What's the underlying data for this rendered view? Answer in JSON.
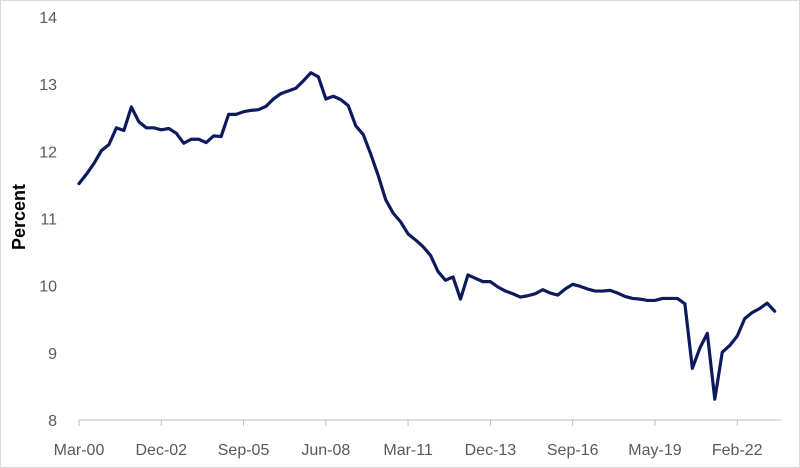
{
  "chart_data": {
    "type": "line",
    "title": "",
    "xlabel": "",
    "ylabel": "Percent",
    "ylim": [
      8,
      14
    ],
    "y_ticks": [
      "8",
      "9",
      "10",
      "11",
      "12",
      "13",
      "14"
    ],
    "x_tick_labels": [
      "Mar-00",
      "Dec-02",
      "Sep-05",
      "Jun-08",
      "Mar-11",
      "Dec-13",
      "Sep-16",
      "May-19",
      "Feb-22"
    ],
    "x_unit": "quarter",
    "x_range": [
      "Mar-00",
      "Jun-23"
    ],
    "grid": false,
    "legend": "none",
    "line_color": "#0d1b5c",
    "series": [
      {
        "x": [
          "Mar-00",
          "Jun-00",
          "Sep-00",
          "Dec-00",
          "Mar-01",
          "Jun-01",
          "Sep-01",
          "Dec-01",
          "Mar-02",
          "Jun-02",
          "Sep-02",
          "Dec-02",
          "Mar-03",
          "Jun-03",
          "Sep-03",
          "Dec-03",
          "Mar-04",
          "Jun-04",
          "Sep-04",
          "Dec-04",
          "Mar-05",
          "Jun-05",
          "Sep-05",
          "Dec-05",
          "Mar-06",
          "Jun-06",
          "Sep-06",
          "Dec-06",
          "Mar-07",
          "Jun-07",
          "Sep-07",
          "Dec-07",
          "Mar-08",
          "Jun-08",
          "Sep-08",
          "Dec-08",
          "Mar-09",
          "Jun-09",
          "Sep-09",
          "Dec-09",
          "Mar-10",
          "Jun-10",
          "Sep-10",
          "Dec-10",
          "Mar-11",
          "Jun-11",
          "Sep-11",
          "Dec-11",
          "Mar-12",
          "Jun-12",
          "Sep-12",
          "Dec-12",
          "Mar-13",
          "Jun-13",
          "Sep-13",
          "Dec-13",
          "Mar-14",
          "Jun-14",
          "Sep-14",
          "Dec-14",
          "Mar-15",
          "Jun-15",
          "Sep-15",
          "Dec-15",
          "Mar-16",
          "Jun-16",
          "Sep-16",
          "Dec-16",
          "Mar-17",
          "Jun-17",
          "Sep-17",
          "Dec-17",
          "Mar-18",
          "Jun-18",
          "Sep-18",
          "Dec-18",
          "Mar-19",
          "Jun-19",
          "Sep-19",
          "Dec-19",
          "Mar-20",
          "Jun-20",
          "Sep-20",
          "Dec-20",
          "Mar-21",
          "Jun-21",
          "Sep-21",
          "Dec-21",
          "Mar-22",
          "Jun-22",
          "Sep-22",
          "Dec-22",
          "Mar-23",
          "Jun-23"
        ],
        "values": [
          11.52,
          11.66,
          11.82,
          12.01,
          12.1,
          12.35,
          12.31,
          12.66,
          12.44,
          12.35,
          12.35,
          12.32,
          12.34,
          12.27,
          12.12,
          12.18,
          12.18,
          12.13,
          12.23,
          12.22,
          12.55,
          12.55,
          12.59,
          12.61,
          12.62,
          12.67,
          12.78,
          12.86,
          12.9,
          12.94,
          13.05,
          13.17,
          13.11,
          12.78,
          12.82,
          12.77,
          12.68,
          12.38,
          12.25,
          11.96,
          11.64,
          11.28,
          11.08,
          10.95,
          10.77,
          10.68,
          10.58,
          10.45,
          10.21,
          10.08,
          10.13,
          9.8,
          10.16,
          10.11,
          10.06,
          10.06,
          9.98,
          9.92,
          9.88,
          9.83,
          9.85,
          9.88,
          9.94,
          9.89,
          9.86,
          9.95,
          10.02,
          9.99,
          9.95,
          9.92,
          9.92,
          9.93,
          9.89,
          9.84,
          9.81,
          9.8,
          9.78,
          9.78,
          9.81,
          9.81,
          9.81,
          9.73,
          8.77,
          9.07,
          9.29,
          8.31,
          9.01,
          9.11,
          9.25,
          9.51,
          9.6,
          9.66,
          9.74,
          9.62
        ]
      }
    ]
  }
}
